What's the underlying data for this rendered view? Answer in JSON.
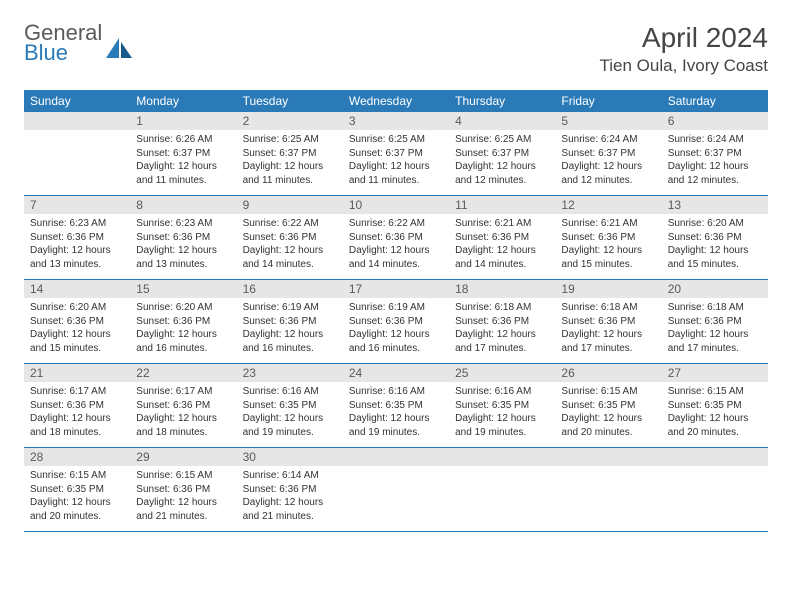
{
  "logo": {
    "general": "General",
    "blue": "Blue"
  },
  "title": {
    "month": "April 2024",
    "location": "Tien Oula, Ivory Coast"
  },
  "colors": {
    "header_bg": "#2a7ab8",
    "header_fg": "#ffffff",
    "daynum_bg": "#e6e6e6",
    "daynum_fg": "#5a5a5a",
    "border": "#2a7ab8",
    "text": "#333333",
    "logo_gray": "#5a5a5a",
    "logo_blue": "#2a7ab8"
  },
  "weekdays": [
    "Sunday",
    "Monday",
    "Tuesday",
    "Wednesday",
    "Thursday",
    "Friday",
    "Saturday"
  ],
  "weeks": [
    [
      null,
      {
        "n": "1",
        "sr": "Sunrise: 6:26 AM",
        "ss": "Sunset: 6:37 PM",
        "d1": "Daylight: 12 hours",
        "d2": "and 11 minutes."
      },
      {
        "n": "2",
        "sr": "Sunrise: 6:25 AM",
        "ss": "Sunset: 6:37 PM",
        "d1": "Daylight: 12 hours",
        "d2": "and 11 minutes."
      },
      {
        "n": "3",
        "sr": "Sunrise: 6:25 AM",
        "ss": "Sunset: 6:37 PM",
        "d1": "Daylight: 12 hours",
        "d2": "and 11 minutes."
      },
      {
        "n": "4",
        "sr": "Sunrise: 6:25 AM",
        "ss": "Sunset: 6:37 PM",
        "d1": "Daylight: 12 hours",
        "d2": "and 12 minutes."
      },
      {
        "n": "5",
        "sr": "Sunrise: 6:24 AM",
        "ss": "Sunset: 6:37 PM",
        "d1": "Daylight: 12 hours",
        "d2": "and 12 minutes."
      },
      {
        "n": "6",
        "sr": "Sunrise: 6:24 AM",
        "ss": "Sunset: 6:37 PM",
        "d1": "Daylight: 12 hours",
        "d2": "and 12 minutes."
      }
    ],
    [
      {
        "n": "7",
        "sr": "Sunrise: 6:23 AM",
        "ss": "Sunset: 6:36 PM",
        "d1": "Daylight: 12 hours",
        "d2": "and 13 minutes."
      },
      {
        "n": "8",
        "sr": "Sunrise: 6:23 AM",
        "ss": "Sunset: 6:36 PM",
        "d1": "Daylight: 12 hours",
        "d2": "and 13 minutes."
      },
      {
        "n": "9",
        "sr": "Sunrise: 6:22 AM",
        "ss": "Sunset: 6:36 PM",
        "d1": "Daylight: 12 hours",
        "d2": "and 14 minutes."
      },
      {
        "n": "10",
        "sr": "Sunrise: 6:22 AM",
        "ss": "Sunset: 6:36 PM",
        "d1": "Daylight: 12 hours",
        "d2": "and 14 minutes."
      },
      {
        "n": "11",
        "sr": "Sunrise: 6:21 AM",
        "ss": "Sunset: 6:36 PM",
        "d1": "Daylight: 12 hours",
        "d2": "and 14 minutes."
      },
      {
        "n": "12",
        "sr": "Sunrise: 6:21 AM",
        "ss": "Sunset: 6:36 PM",
        "d1": "Daylight: 12 hours",
        "d2": "and 15 minutes."
      },
      {
        "n": "13",
        "sr": "Sunrise: 6:20 AM",
        "ss": "Sunset: 6:36 PM",
        "d1": "Daylight: 12 hours",
        "d2": "and 15 minutes."
      }
    ],
    [
      {
        "n": "14",
        "sr": "Sunrise: 6:20 AM",
        "ss": "Sunset: 6:36 PM",
        "d1": "Daylight: 12 hours",
        "d2": "and 15 minutes."
      },
      {
        "n": "15",
        "sr": "Sunrise: 6:20 AM",
        "ss": "Sunset: 6:36 PM",
        "d1": "Daylight: 12 hours",
        "d2": "and 16 minutes."
      },
      {
        "n": "16",
        "sr": "Sunrise: 6:19 AM",
        "ss": "Sunset: 6:36 PM",
        "d1": "Daylight: 12 hours",
        "d2": "and 16 minutes."
      },
      {
        "n": "17",
        "sr": "Sunrise: 6:19 AM",
        "ss": "Sunset: 6:36 PM",
        "d1": "Daylight: 12 hours",
        "d2": "and 16 minutes."
      },
      {
        "n": "18",
        "sr": "Sunrise: 6:18 AM",
        "ss": "Sunset: 6:36 PM",
        "d1": "Daylight: 12 hours",
        "d2": "and 17 minutes."
      },
      {
        "n": "19",
        "sr": "Sunrise: 6:18 AM",
        "ss": "Sunset: 6:36 PM",
        "d1": "Daylight: 12 hours",
        "d2": "and 17 minutes."
      },
      {
        "n": "20",
        "sr": "Sunrise: 6:18 AM",
        "ss": "Sunset: 6:36 PM",
        "d1": "Daylight: 12 hours",
        "d2": "and 17 minutes."
      }
    ],
    [
      {
        "n": "21",
        "sr": "Sunrise: 6:17 AM",
        "ss": "Sunset: 6:36 PM",
        "d1": "Daylight: 12 hours",
        "d2": "and 18 minutes."
      },
      {
        "n": "22",
        "sr": "Sunrise: 6:17 AM",
        "ss": "Sunset: 6:36 PM",
        "d1": "Daylight: 12 hours",
        "d2": "and 18 minutes."
      },
      {
        "n": "23",
        "sr": "Sunrise: 6:16 AM",
        "ss": "Sunset: 6:35 PM",
        "d1": "Daylight: 12 hours",
        "d2": "and 19 minutes."
      },
      {
        "n": "24",
        "sr": "Sunrise: 6:16 AM",
        "ss": "Sunset: 6:35 PM",
        "d1": "Daylight: 12 hours",
        "d2": "and 19 minutes."
      },
      {
        "n": "25",
        "sr": "Sunrise: 6:16 AM",
        "ss": "Sunset: 6:35 PM",
        "d1": "Daylight: 12 hours",
        "d2": "and 19 minutes."
      },
      {
        "n": "26",
        "sr": "Sunrise: 6:15 AM",
        "ss": "Sunset: 6:35 PM",
        "d1": "Daylight: 12 hours",
        "d2": "and 20 minutes."
      },
      {
        "n": "27",
        "sr": "Sunrise: 6:15 AM",
        "ss": "Sunset: 6:35 PM",
        "d1": "Daylight: 12 hours",
        "d2": "and 20 minutes."
      }
    ],
    [
      {
        "n": "28",
        "sr": "Sunrise: 6:15 AM",
        "ss": "Sunset: 6:35 PM",
        "d1": "Daylight: 12 hours",
        "d2": "and 20 minutes."
      },
      {
        "n": "29",
        "sr": "Sunrise: 6:15 AM",
        "ss": "Sunset: 6:36 PM",
        "d1": "Daylight: 12 hours",
        "d2": "and 21 minutes."
      },
      {
        "n": "30",
        "sr": "Sunrise: 6:14 AM",
        "ss": "Sunset: 6:36 PM",
        "d1": "Daylight: 12 hours",
        "d2": "and 21 minutes."
      },
      null,
      null,
      null,
      null
    ]
  ]
}
